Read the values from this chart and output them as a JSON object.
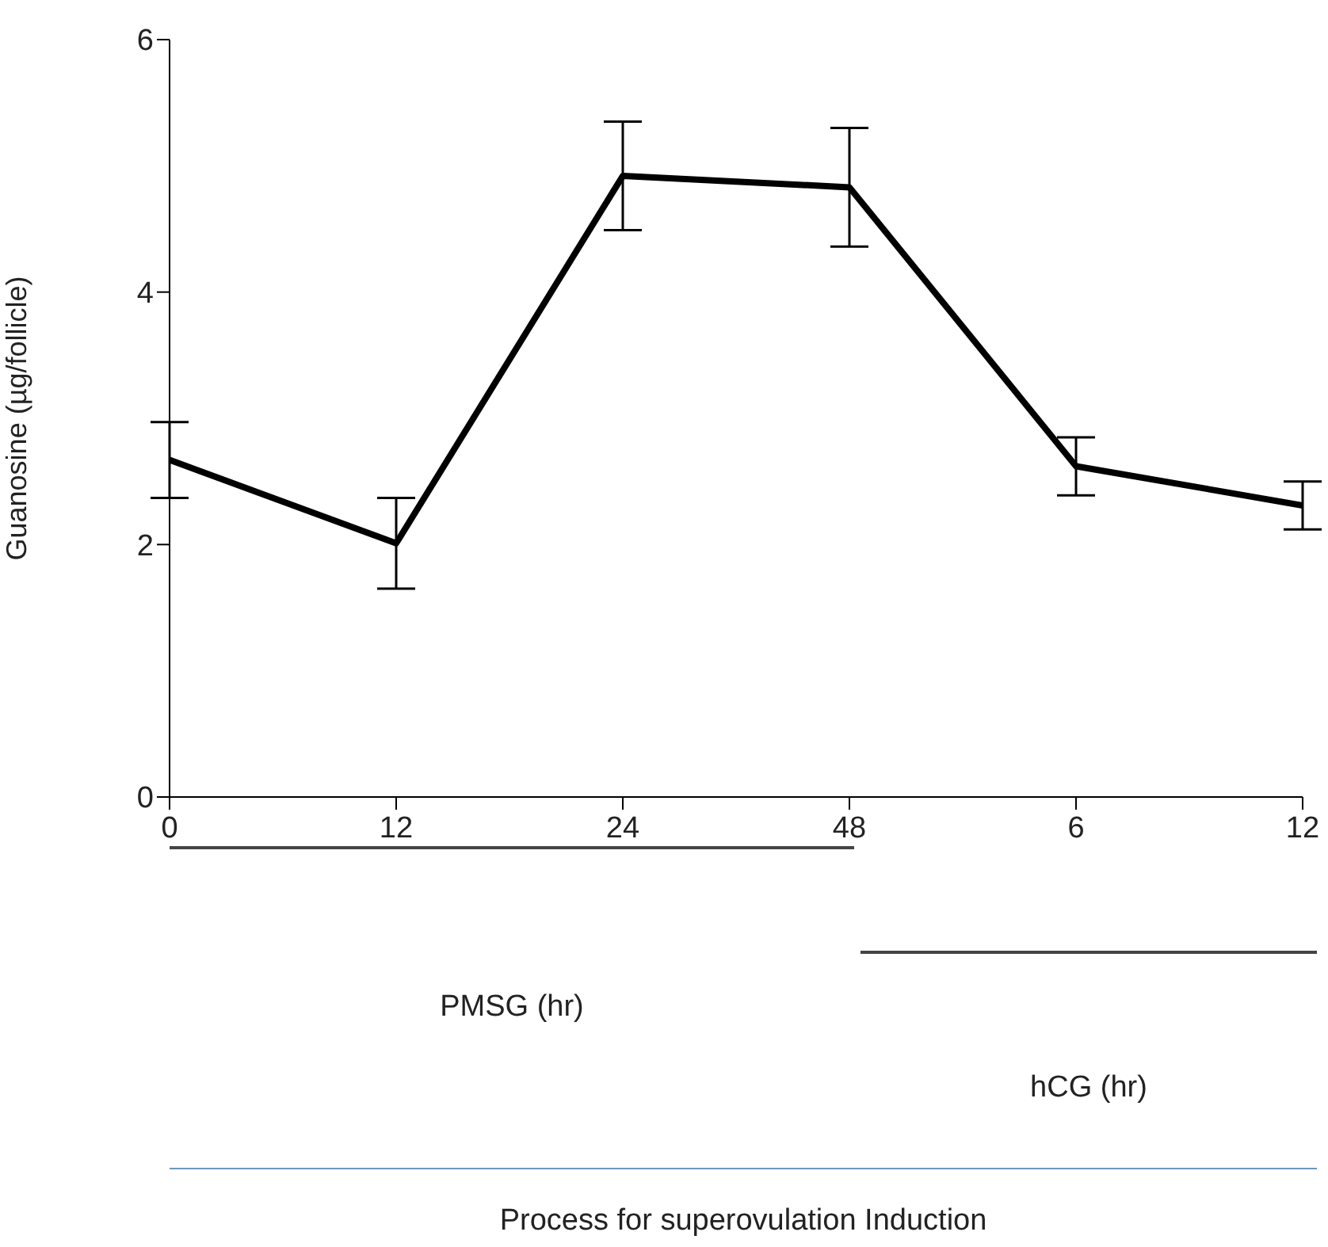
{
  "chart_data": {
    "type": "line",
    "ylabel": "Guanosine (µg/follicle)",
    "categories": [
      "0",
      "12",
      "24",
      "48",
      "6",
      "12"
    ],
    "series": [
      {
        "color": "#000000",
        "values": [
          2.67,
          2.01,
          4.92,
          4.83,
          2.62,
          2.31
        ],
        "errors": [
          0.3,
          0.36,
          0.43,
          0.47,
          0.23,
          0.19
        ]
      }
    ],
    "ylim": [
      0,
      6
    ],
    "yticks": [
      0,
      2,
      4,
      6
    ],
    "grid": false,
    "legend": false,
    "marker": "none",
    "line_style": "solid",
    "annotations": [
      "PMSG (hr)",
      "hCG (hr)",
      "Process for superovulation Induction"
    ]
  }
}
